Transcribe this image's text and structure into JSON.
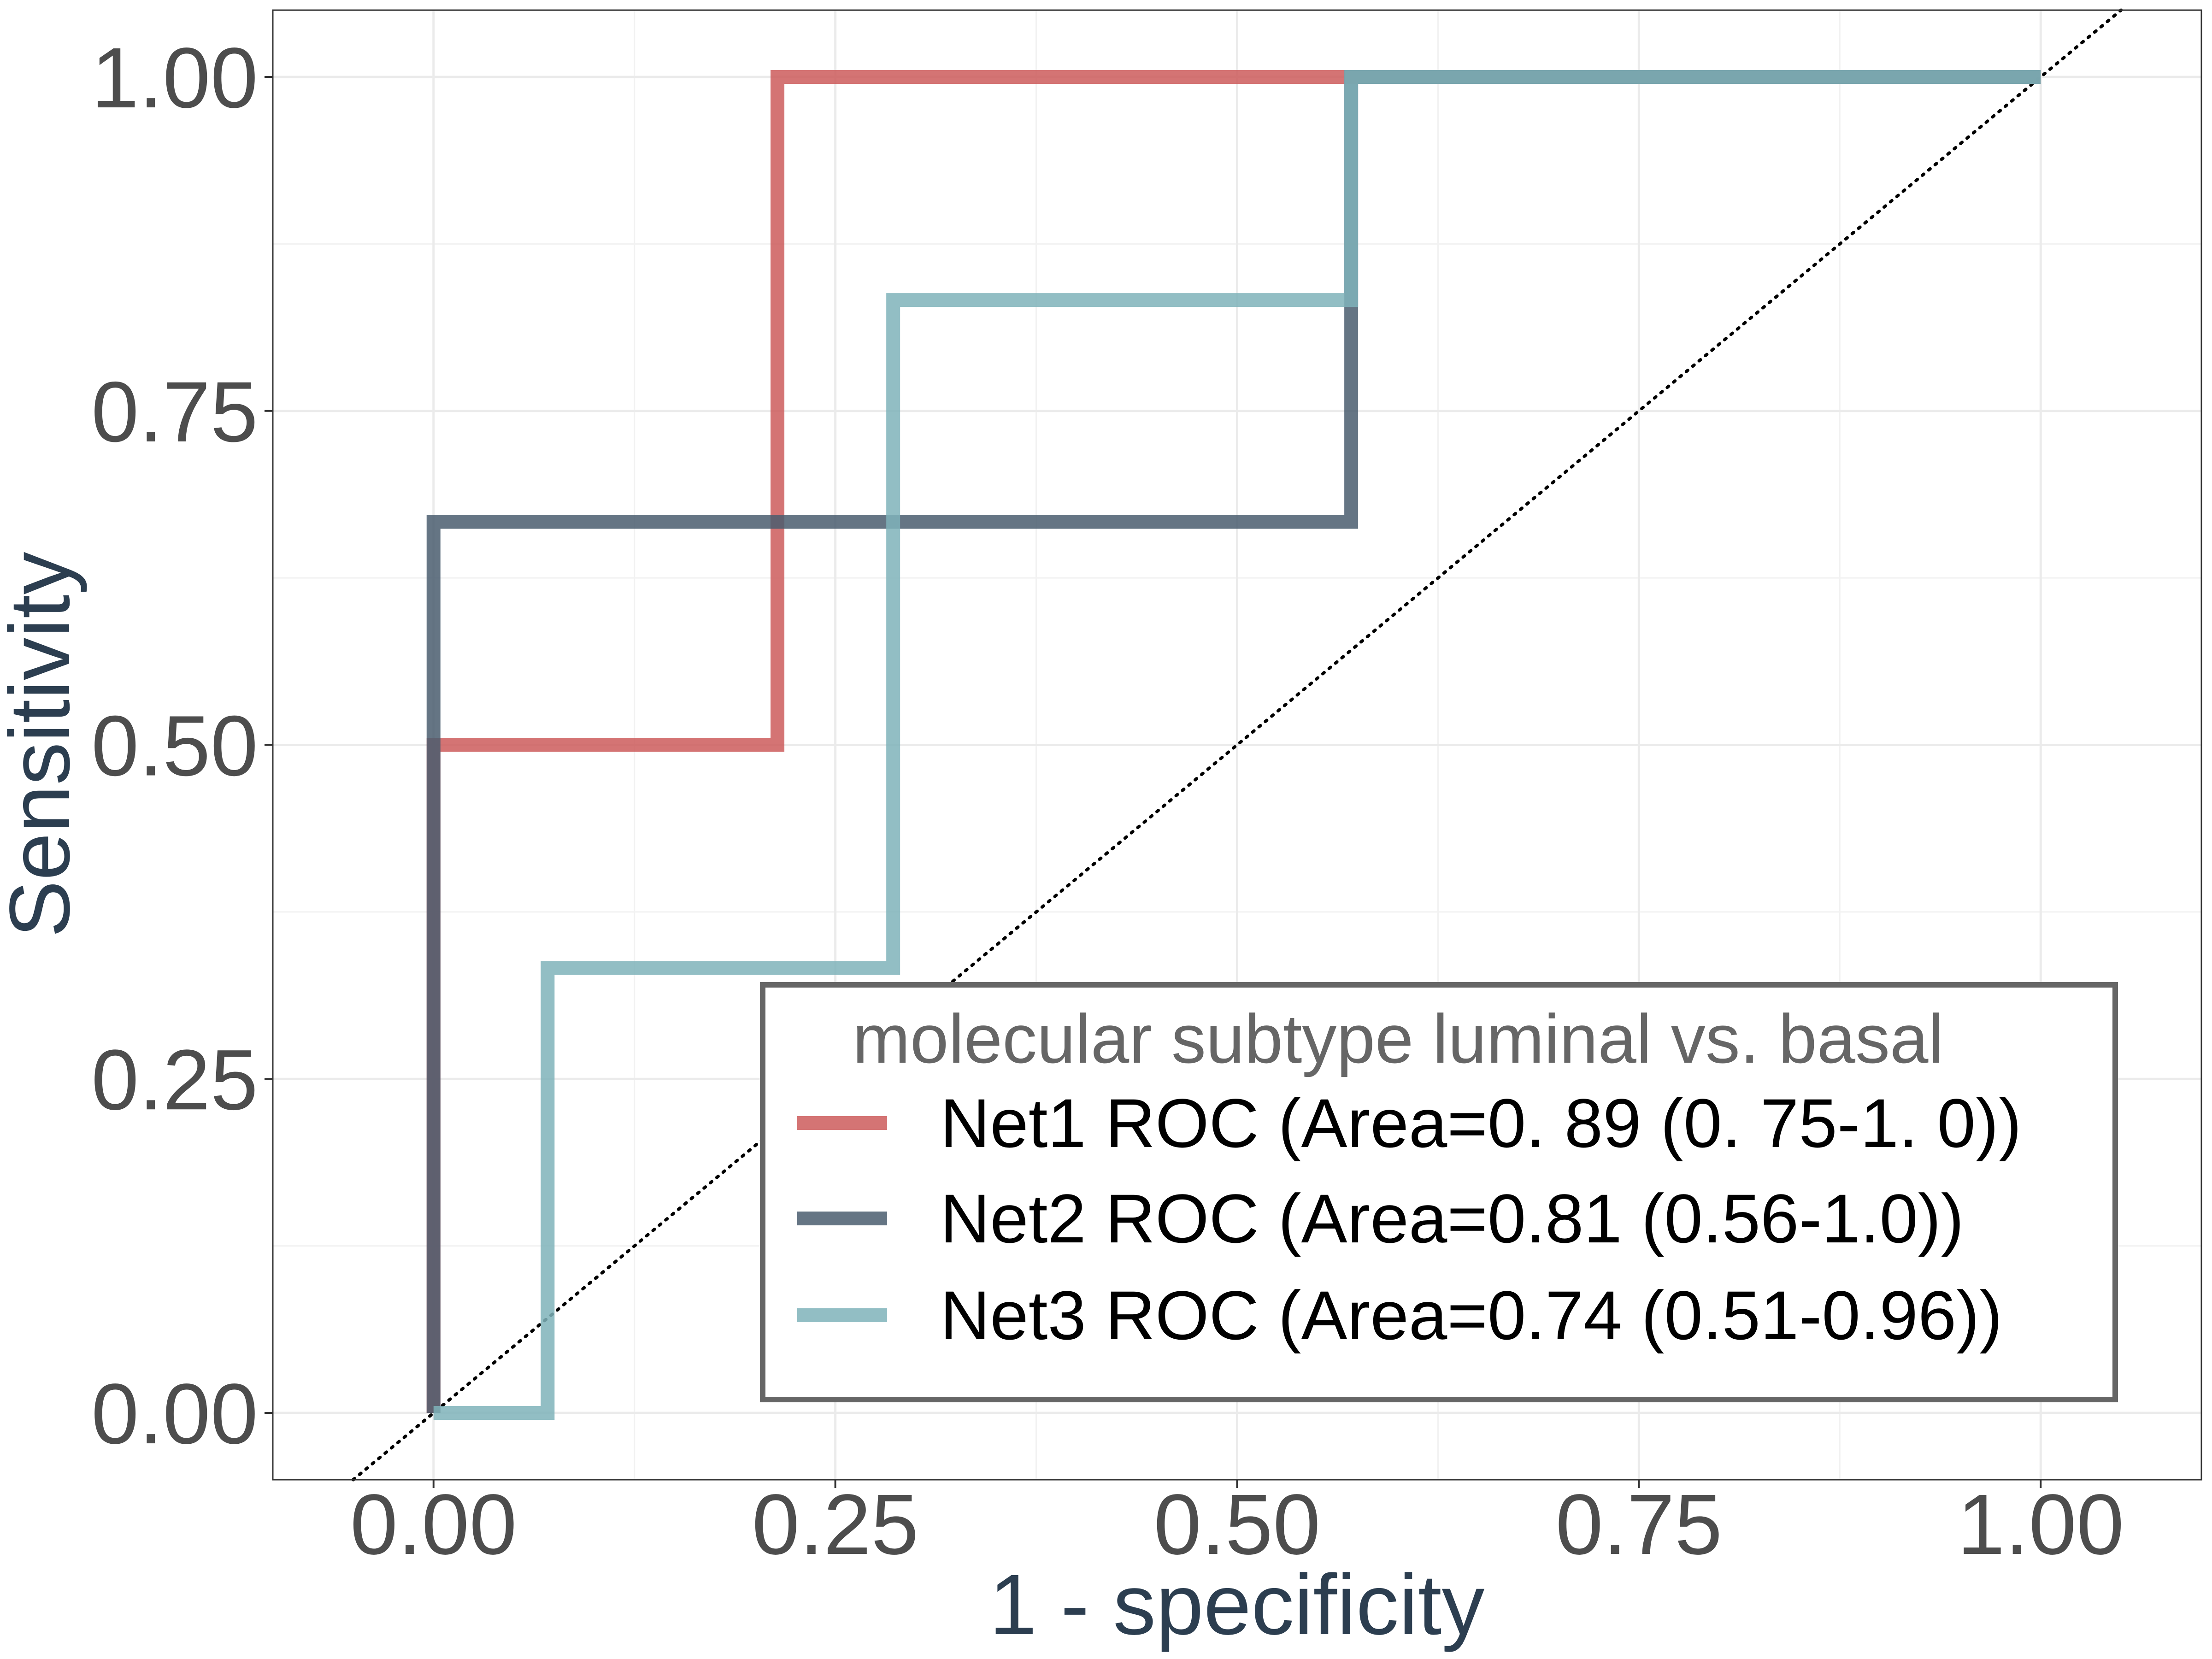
{
  "chart_data": {
    "type": "line",
    "step": true,
    "xlabel": "1 - specificity",
    "ylabel": "Sensitivity",
    "xlim": [
      -0.1,
      1.1
    ],
    "ylim": [
      -0.05,
      1.05
    ],
    "x_ticks": [
      "0.00",
      "0.25",
      "0.50",
      "0.75",
      "1.00"
    ],
    "y_ticks": [
      "0.00",
      "0.25",
      "0.50",
      "0.75",
      "1.00"
    ],
    "grid": true,
    "reference_line": "diagonal, dotted",
    "legend": {
      "title": "molecular subtype luminal vs. basal",
      "position": "bottom-right",
      "entries": [
        "Net1 ROC (Area=0. 89 (0. 75-1. 0))",
        "Net2 ROC (Area=0.81 (0.56-1.0))",
        "Net3 ROC (Area=0.74 (0.51-0.96))"
      ]
    },
    "series": [
      {
        "name": "Net1 ROC (Area=0. 89 (0. 75-1. 0))",
        "color": "#cd5c5c",
        "x": [
          0,
          0,
          0.214,
          0.214,
          1.0
        ],
        "y": [
          0,
          0.5,
          0.5,
          1.0,
          1.0
        ]
      },
      {
        "name": "Net2 ROC (Area=0.81 (0.56-1.0))",
        "color": "#4a5d6e",
        "x": [
          0,
          0,
          0.571,
          0.571,
          1.0
        ],
        "y": [
          0,
          0.667,
          0.667,
          1.0,
          1.0
        ]
      },
      {
        "name": "Net3 ROC (Area=0.74 (0.51-0.96))",
        "color": "#7fb3ba",
        "x": [
          0,
          0.071,
          0.071,
          0.286,
          0.286,
          0.571,
          0.571,
          1.0
        ],
        "y": [
          0,
          0,
          0.333,
          0.333,
          0.833,
          0.833,
          1.0,
          1.0
        ]
      }
    ]
  }
}
